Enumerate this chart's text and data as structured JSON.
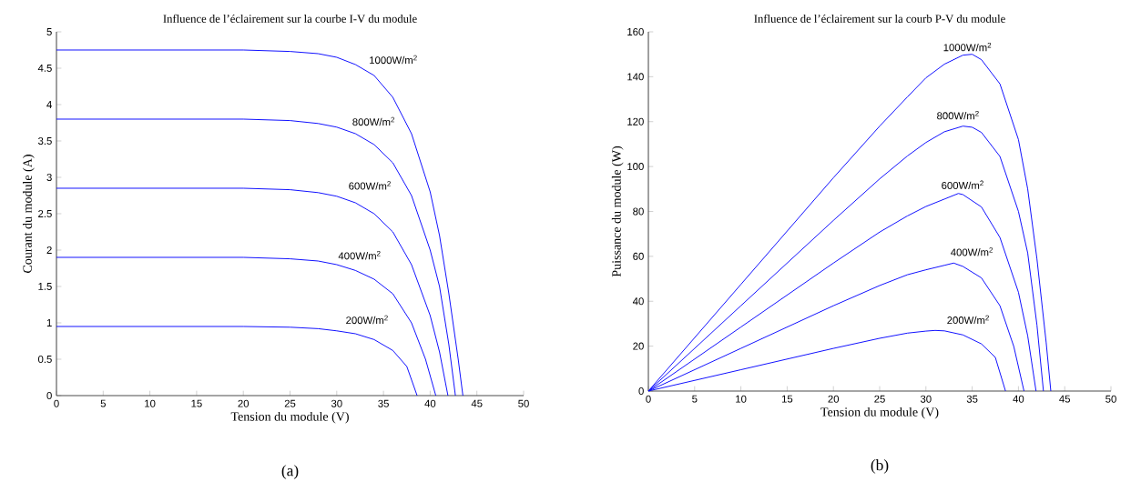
{
  "chart_data": [
    {
      "type": "line",
      "title": "Influence de l’éclairement sur la courbe I-V du module",
      "xlabel": "Tension du module (V)",
      "ylabel": "Courant du module (A)",
      "xlim": [
        0,
        50
      ],
      "ylim": [
        0,
        5
      ],
      "xticks": [
        0,
        5,
        10,
        15,
        20,
        25,
        30,
        35,
        40,
        45,
        50
      ],
      "yticks": [
        0,
        0.5,
        1,
        1.5,
        2,
        2.5,
        3,
        3.5,
        4,
        4.5,
        5
      ],
      "series": [
        {
          "name": "1000W/m$^{2}$",
          "color": "#0000ff",
          "x": [
            0,
            20,
            25,
            28,
            30,
            32,
            34,
            36,
            38,
            40,
            41,
            42,
            43,
            43.5
          ],
          "values": [
            4.75,
            4.75,
            4.73,
            4.7,
            4.65,
            4.55,
            4.4,
            4.1,
            3.6,
            2.8,
            2.2,
            1.4,
            0.5,
            0
          ]
        },
        {
          "name": "800W/m$^{2}$",
          "color": "#0000ff",
          "x": [
            0,
            20,
            25,
            28,
            30,
            32,
            34,
            36,
            38,
            40,
            41,
            42,
            42.7
          ],
          "values": [
            3.8,
            3.8,
            3.78,
            3.74,
            3.69,
            3.6,
            3.45,
            3.2,
            2.75,
            2.0,
            1.5,
            0.7,
            0
          ]
        },
        {
          "name": "600W/m$^{2}$",
          "color": "#0000ff",
          "x": [
            0,
            20,
            25,
            28,
            30,
            32,
            34,
            36,
            38,
            40,
            41,
            41.9
          ],
          "values": [
            2.85,
            2.85,
            2.83,
            2.79,
            2.74,
            2.65,
            2.5,
            2.25,
            1.8,
            1.1,
            0.6,
            0
          ]
        },
        {
          "name": "400W/m$^{2}$",
          "color": "#0000ff",
          "x": [
            0,
            20,
            25,
            28,
            30,
            32,
            34,
            36,
            38,
            39.5,
            40.6
          ],
          "values": [
            1.9,
            1.9,
            1.88,
            1.85,
            1.8,
            1.72,
            1.6,
            1.4,
            1.0,
            0.5,
            0
          ]
        },
        {
          "name": "200W/m$^{2}$",
          "color": "#0000ff",
          "x": [
            0,
            20,
            25,
            28,
            30,
            32,
            34,
            36,
            37.5,
            38.6
          ],
          "values": [
            0.95,
            0.95,
            0.94,
            0.92,
            0.89,
            0.85,
            0.77,
            0.62,
            0.4,
            0
          ]
        }
      ],
      "annotations": [
        "(a)"
      ]
    },
    {
      "type": "line",
      "title": "Influence de l’éclairement sur la courb P-V du module",
      "xlabel": "Tension du module (V)",
      "ylabel": "Puissance du module (W)",
      "xlim": [
        0,
        50
      ],
      "ylim": [
        0,
        160
      ],
      "xticks": [
        0,
        5,
        10,
        15,
        20,
        25,
        30,
        35,
        40,
        45,
        50
      ],
      "yticks": [
        0,
        20,
        40,
        60,
        80,
        100,
        120,
        140,
        160
      ],
      "series": [
        {
          "name": "1000W/m$^{2}$",
          "color": "#0000ff",
          "x": [
            0,
            10,
            20,
            25,
            28,
            30,
            32,
            34,
            35,
            36,
            38,
            40,
            41,
            42,
            43,
            43.5
          ],
          "values": [
            0,
            47.5,
            95,
            118,
            131,
            139.5,
            145.6,
            149.6,
            150,
            147.6,
            136.8,
            112,
            90,
            58.8,
            21.5,
            0
          ]
        },
        {
          "name": "800W/m$^{2}$",
          "color": "#0000ff",
          "x": [
            0,
            10,
            20,
            25,
            28,
            30,
            32,
            34,
            35,
            36,
            38,
            40,
            41,
            42,
            42.7
          ],
          "values": [
            0,
            38,
            76,
            94.5,
            104.7,
            110.7,
            115.5,
            118,
            117.5,
            115.2,
            104.5,
            80,
            61.5,
            29.4,
            0
          ]
        },
        {
          "name": "600W/m$^{2}$",
          "color": "#0000ff",
          "x": [
            0,
            10,
            20,
            25,
            28,
            30,
            32,
            33.5,
            34,
            36,
            38,
            40,
            41,
            41.9
          ],
          "values": [
            0,
            28.5,
            57,
            70.8,
            78,
            82.2,
            85.5,
            88,
            87.5,
            82,
            68.4,
            44,
            24.6,
            0
          ]
        },
        {
          "name": "400W/m$^{2}$",
          "color": "#0000ff",
          "x": [
            0,
            10,
            20,
            25,
            28,
            30,
            32,
            33,
            34,
            36,
            38,
            39.5,
            40.6
          ],
          "values": [
            0,
            19,
            38,
            47,
            51.8,
            54,
            56,
            57,
            55.5,
            50.4,
            38,
            19.8,
            0
          ]
        },
        {
          "name": "200W/m$^{2}$",
          "color": "#0000ff",
          "x": [
            0,
            10,
            20,
            25,
            28,
            30,
            31,
            32,
            34,
            36,
            37.5,
            38.6
          ],
          "values": [
            0,
            9.5,
            19,
            23.5,
            25.8,
            26.7,
            27,
            26.8,
            25,
            21,
            15,
            0
          ]
        }
      ],
      "annotations": [
        "(b)"
      ]
    }
  ]
}
